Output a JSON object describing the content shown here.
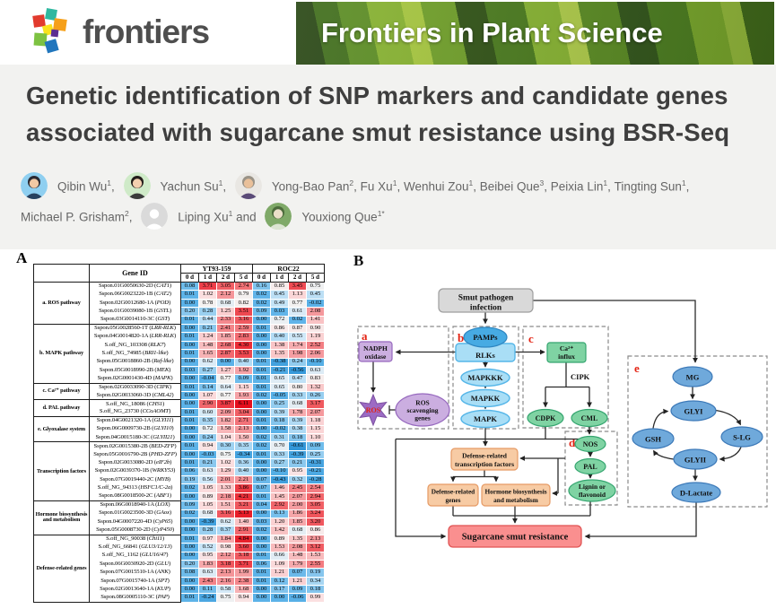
{
  "masthead": {
    "logo_text": "frontiers",
    "banner_title": "Frontiers in Plant Science"
  },
  "article": {
    "title": [
      "Genetic identification of SNP markers and candidate genes",
      "associated with sugarcane smut resistance using BSR-Seq"
    ],
    "author_lines": [
      [
        {
          "avatar": "man-blue"
        },
        {
          "name": "Qibin Wu",
          "sup": "1",
          "trail": ", "
        },
        {
          "avatar": "woman-green"
        },
        {
          "name": "Yachun Su",
          "sup": "1",
          "trail": ", "
        },
        {
          "avatar": "man-grey"
        },
        {
          "name": "Yong-Bao Pan",
          "sup": "2",
          "trail": ", "
        },
        {
          "name": "Fu Xu",
          "sup": "1",
          "trail": ", "
        },
        {
          "name": "Wenhui Zou",
          "sup": "1",
          "trail": ", "
        },
        {
          "name": "Beibei Que",
          "sup": "3",
          "trail": ", "
        },
        {
          "name": "Peixia Lin",
          "sup": "1",
          "trail": ", "
        },
        {
          "name": "Tingting Sun",
          "sup": "1",
          "trail": ","
        }
      ],
      [
        {
          "name": "Michael P. Grisham",
          "sup": "2",
          "trail": ", "
        },
        {
          "avatar": "placeholder"
        },
        {
          "name": "Liping Xu",
          "sup": "1",
          "trail": " and "
        },
        {
          "avatar": "outdoor-green"
        },
        {
          "name": "Youxiong Que",
          "sup": "1*",
          "trail": ""
        }
      ]
    ]
  },
  "figure": {
    "panel_a_label": "A",
    "panel_b_label": "B",
    "table": {
      "type": "heatmap",
      "gene_header": "Gene ID",
      "col_groups": [
        "YT93-159",
        "ROC22"
      ],
      "time_points": [
        "0 d",
        "1 d",
        "2 d",
        "5 d"
      ],
      "value_range": [
        -0.61,
        6.11
      ],
      "groups": [
        {
          "category": "a. ROS pathway",
          "rows": [
            {
              "id": "Sspon.01G0050630-2D",
              "gene": "CAT1",
              "values": [
                0.08,
                3.71,
                3.05,
                2.74,
                0.16,
                0.85,
                3.45,
                0.75
              ]
            },
            {
              "id": "Sspon.06G0023220-1B",
              "gene": "CAT2",
              "values": [
                0.01,
                1.02,
                2.12,
                0.79,
                0.02,
                0.45,
                1.13,
                0.45
              ]
            },
            {
              "id": "Sspon.02G0012680-1A",
              "gene": "POD",
              "values": [
                0.0,
                0.78,
                0.68,
                0.82,
                0.02,
                0.49,
                0.77,
                -0.02
              ]
            },
            {
              "id": "Sspon.01G0039080-1B",
              "gene": "GSTL",
              "values": [
                0.2,
                0.28,
                1.25,
                3.51,
                0.09,
                0.03,
                0.61,
                2.08
              ]
            },
            {
              "id": "Sspon.03G0014110-3C",
              "gene": "GST",
              "values": [
                0.01,
                0.44,
                2.33,
                3.16,
                0.0,
                0.72,
                0.02,
                1.41
              ]
            }
          ]
        },
        {
          "category": "b. MAPK pathway",
          "rows": [
            {
              "id": "Sspon.05G0028560-1T",
              "gene": "LRR-RLK",
              "values": [
                0.0,
                0.21,
                2.41,
                2.59,
                0.01,
                0.86,
                0.87,
                0.9
              ]
            },
            {
              "id": "Sspon.04G0014820-1A",
              "gene": "LRR-RLK",
              "values": [
                0.01,
                1.24,
                1.85,
                2.83,
                0.0,
                0.4,
                0.55,
                1.19
              ]
            },
            {
              "id": "S.off_NG_103308",
              "gene": "RLK7",
              "values": [
                0.0,
                1.48,
                2.68,
                4.3,
                0.0,
                1.38,
                1.74,
                2.52
              ]
            },
            {
              "id": "S.off_NG_74985",
              "gene": "BRI1-like",
              "values": [
                0.01,
                1.65,
                2.87,
                3.53,
                0.0,
                1.35,
                1.98,
                2.06
              ]
            },
            {
              "id": "Sspon.05G0018860-2B",
              "gene": "Raf-like",
              "values": [
                0.0,
                0.62,
                0.0,
                0.4,
                0.01,
                -0.38,
                0.24,
                -0.1
              ]
            },
            {
              "id": "Sspon.05G0018990-2B",
              "gene": "MEK",
              "values": [
                0.03,
                0.27,
                1.27,
                1.92,
                0.01,
                -0.21,
                -0.56,
                0.63
              ]
            },
            {
              "id": "Sspon.02G0001430-4D",
              "gene": "MAPK",
              "values": [
                0.0,
                -0.04,
                0.77,
                0.09,
                0.01,
                0.65,
                0.47,
                0.83
              ]
            }
          ]
        },
        {
          "category": "c. Ca²⁺ pathway",
          "rows": [
            {
              "id": "Sspon.02G0033090-3D",
              "gene": "CIPK",
              "values": [
                0.01,
                0.14,
                0.64,
                1.15,
                0.01,
                0.65,
                0.8,
                1.32
              ]
            },
            {
              "id": "Sspon.02G0033060-3D",
              "gene": "CML42",
              "values": [
                0.0,
                1.07,
                0.77,
                1.93,
                0.02,
                -0.05,
                0.33,
                0.26
              ]
            }
          ]
        },
        {
          "category": "d. PAL pathway",
          "rows": [
            {
              "id": "S.off_NG_18086",
              "gene": "CHS1",
              "values": [
                0.0,
                2.9,
                3.87,
                6.11,
                0.0,
                0.25,
                0.68,
                3.17
              ]
            },
            {
              "id": "S.off_NG_23730",
              "gene": "CCoAOMT",
              "values": [
                0.01,
                0.6,
                2.09,
                3.04,
                0.0,
                0.39,
                1.78,
                2.07
              ]
            }
          ]
        },
        {
          "category": "e. Glyoxalase system",
          "rows": [
            {
              "id": "Sspon.04G0021320-1A",
              "gene": "GLYI11",
              "values": [
                0.01,
                0.35,
                1.82,
                2.71,
                0.01,
                0.18,
                0.39,
                1.18
              ]
            },
            {
              "id": "Sspon.06G0009730-2B",
              "gene": "GLYI10",
              "values": [
                0.0,
                0.72,
                1.58,
                2.13,
                0.0,
                -0.02,
                0.38,
                1.15
              ]
            },
            {
              "id": "Sspon.04G0015180-3C",
              "gene": "GLYII21",
              "values": [
                0.0,
                0.24,
                1.04,
                1.5,
                0.02,
                0.31,
                0.18,
                1.1
              ]
            }
          ]
        },
        {
          "category": "Transcription factors",
          "rows": [
            {
              "id": "Sspon.02G0015380-2B",
              "gene": "BED-ZFP",
              "values": [
                0.01,
                0.94,
                0.3,
                0.35,
                0.02,
                0.7,
                -0.61,
                0.09
              ]
            },
            {
              "id": "Sspon.05G0016790-2B",
              "gene": "PHD-ZFP",
              "values": [
                0.0,
                -0.03,
                0.75,
                -0.34,
                0.01,
                0.33,
                -0.39,
                0.25
              ]
            },
            {
              "id": "Sspon.02G0033080-2D",
              "gene": "eIF2b",
              "values": [
                0.01,
                0.21,
                1.02,
                0.36,
                0.0,
                0.27,
                0.21,
                -0.31
              ]
            },
            {
              "id": "Sspon.02G0039370-1B",
              "gene": "WRKY53",
              "values": [
                0.06,
                0.63,
                1.29,
                0.4,
                0.0,
                -0.1,
                0.95,
                -0.21
              ]
            },
            {
              "id": "Sspon.07G0019440-2C",
              "gene": "MYB",
              "values": [
                0.19,
                0.56,
                2.01,
                2.21,
                0.07,
                -0.43,
                0.32,
                -0.28
              ]
            },
            {
              "id": "S.off_NG_94313",
              "gene": "HSFC1/C-2a",
              "values": [
                0.02,
                1.05,
                1.33,
                3.86,
                0.07,
                1.46,
                2.45,
                2.54
              ]
            },
            {
              "id": "Sspon.08G0018500-2C",
              "gene": "ABF1",
              "values": [
                0.0,
                0.89,
                2.18,
                4.21,
                0.01,
                1.45,
                2.07,
                2.94
              ]
            }
          ]
        },
        {
          "category": "Hormone biosynthesis and metabolism",
          "rows": [
            {
              "id": "Sspon.06G0018940-1A",
              "gene": "LOX",
              "values": [
                0.09,
                1.05,
                1.51,
                3.21,
                0.04,
                2.92,
                2.0,
                3.05
              ]
            },
            {
              "id": "Sspon.01G0023500-3D",
              "gene": "GAox",
              "values": [
                0.02,
                0.68,
                3.16,
                5.13,
                0.0,
                0.13,
                1.86,
                3.24
              ]
            },
            {
              "id": "Sspon.04G0007220-4D",
              "gene": "CyP65",
              "values": [
                0.0,
                -0.39,
                0.62,
                1.4,
                0.03,
                1.2,
                1.85,
                3.2
              ]
            },
            {
              "id": "Sspon.05G0008730-2D",
              "gene": "CyP450",
              "values": [
                0.0,
                0.28,
                0.37,
                2.91,
                0.02,
                1.42,
                0.68,
                0.86
              ]
            }
          ]
        },
        {
          "category": "Defense-related genes",
          "rows": [
            {
              "id": "S.off_NG_90038",
              "gene": "Chi11",
              "values": [
                0.01,
                0.97,
                1.84,
                4.84,
                0.0,
                0.89,
                1.35,
                2.13
              ]
            },
            {
              "id": "S.off_NG_66841",
              "gene": "GLU3/12/13",
              "values": [
                0.0,
                0.52,
                0.98,
                3.6,
                0.0,
                1.53,
                2.08,
                3.12
              ]
            },
            {
              "id": "S.off_NG_1162",
              "gene": "GLU16/47",
              "values": [
                0.0,
                0.95,
                2.12,
                3.18,
                0.01,
                0.66,
                1.48,
                1.53
              ]
            },
            {
              "id": "Sspon.06G0030920-2D",
              "gene": "GLU",
              "values": [
                0.2,
                1.83,
                3.18,
                3.71,
                0.06,
                1.09,
                1.79,
                2.55
              ]
            },
            {
              "id": "Sspon.07G0015510-1A",
              "gene": "ANK",
              "values": [
                0.08,
                0.63,
                2.13,
                1.99,
                0.01,
                1.21,
                0.07,
                0.19
              ]
            },
            {
              "id": "Sspon.07G0015740-1A",
              "gene": "SPT",
              "values": [
                0.0,
                2.43,
                2.16,
                2.38,
                0.01,
                0.12,
                1.21,
                0.34
              ]
            },
            {
              "id": "Sspon.02G0013640-1A",
              "gene": "KUP",
              "values": [
                0.0,
                0.11,
                0.58,
                1.68,
                0.0,
                0.17,
                0.09,
                0.18
              ]
            },
            {
              "id": "Sspon.08G0005110-3C",
              "gene": "PAP",
              "values": [
                0.01,
                -0.24,
                0.75,
                0.94,
                0.0,
                0.0,
                -0.06,
                0.99
              ]
            }
          ]
        }
      ]
    },
    "diagram": {
      "section_labels": [
        "a",
        "b",
        "c",
        "d",
        "e"
      ],
      "smut": [
        "Smut pathogen",
        "infection"
      ],
      "nadph": [
        "NADPH",
        "oxidase"
      ],
      "ros_star": "ROS",
      "scavenging": [
        "ROS",
        "scavenging",
        "genes"
      ],
      "pamps": "PAMPs",
      "rlks": "RLKs",
      "mapkkk": "MAPKKK",
      "mapkk": "MAPKK",
      "mapk": "MAPK",
      "ca_influx": [
        "Ca²⁺",
        "influx"
      ],
      "cipk": "CIPK",
      "cdpk": "CDPK",
      "cml": "CML",
      "nos": "NOS",
      "pal": "PAL",
      "lignin": [
        "Lignin or",
        "flavonoid"
      ],
      "mg": "MG",
      "glyi": "GLYI",
      "gsh": "GSH",
      "slg": "S-LG",
      "glyii": "GLYII",
      "d_lactate": "D-Lactate",
      "tf_box": [
        "Defense-related",
        "transcription factors"
      ],
      "defense_genes_box": [
        "Defense-related",
        "genes"
      ],
      "hormone_box": [
        "Hormone biosynthesis",
        "and metabolism"
      ],
      "resistance_box": "Sugarcane smut resistance"
    }
  },
  "colors": {
    "heatmap_low": "#2D93D6",
    "heatmap_mid": "#F4F1F0",
    "heatmap_high": "#E50D1B",
    "blue_node": "#A9DEF6",
    "green_node": "#7FD3A3",
    "purple_node": "#CBAEE0",
    "steel_node": "#6FA9DB",
    "orange_node": "#F7CBA4",
    "red_box": "#FA8F8F",
    "grey_box": "#D9D9D9"
  }
}
